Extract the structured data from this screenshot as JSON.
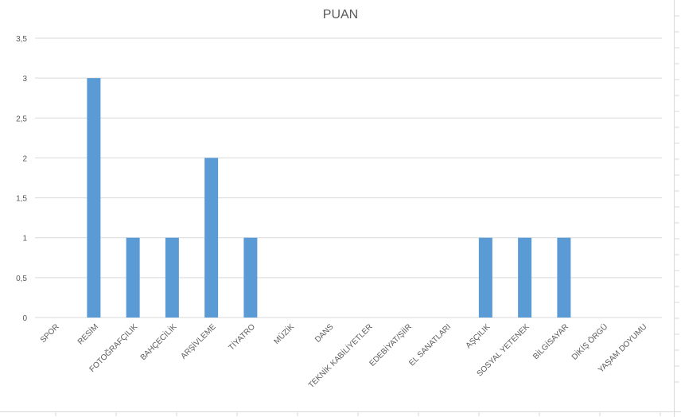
{
  "chart_data": {
    "type": "bar",
    "title": "PUAN",
    "xlabel": "",
    "ylabel": "",
    "ylim": [
      0,
      3.5
    ],
    "yticks": [
      "0",
      "0,5",
      "1",
      "1,5",
      "2",
      "2,5",
      "3",
      "3,5"
    ],
    "categories": [
      "SPOR",
      "RESİM",
      "FOTOĞRAFÇILIK",
      "BAHÇECİLİK",
      "ARŞİVLEME",
      "TİYATRO",
      "MÜZİK",
      "DANS",
      "TEKNİK KABİLİYETLER",
      "EDEBİYAT/ŞİİR",
      "EL SANATLARI",
      "AŞÇILIK",
      "SOSYAL YETENEK",
      "BİLGİSAYAR",
      "DİKİŞ ÖRGÜ",
      "YAŞAM DOYUMU"
    ],
    "values": [
      0,
      3,
      1,
      1,
      2,
      1,
      0,
      0,
      0,
      0,
      0,
      1,
      1,
      1,
      0,
      0
    ],
    "grid": true,
    "legend": "none",
    "colors": {
      "bar": "#5b9bd5",
      "grid": "#d9d9d9",
      "text": "#595959"
    }
  }
}
